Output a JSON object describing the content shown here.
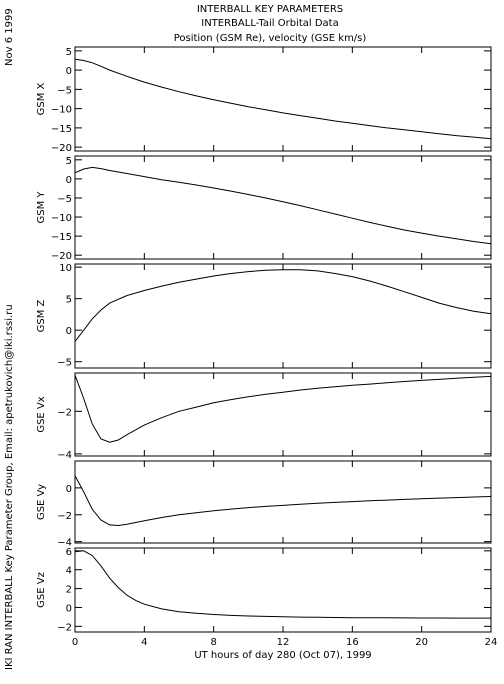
{
  "header": {
    "title": "INTERBALL KEY PARAMETERS",
    "subtitle": "INTERBALL-Tail Orbital Data",
    "subtitle2": "Position (GSM Re), velocity (GSE km/s)"
  },
  "side_date": "Nov  6 1999",
  "side_credit": "IKI RAN INTERBALL Key Parameter Group, Email: apetrukovich@iki.rssi.ru",
  "chart_data": {
    "type": "line",
    "xlabel": "UT hours of day 280 (Oct 07), 1999",
    "xlim": [
      0,
      24
    ],
    "xticks": [
      0,
      4,
      8,
      12,
      16,
      20,
      24
    ],
    "panels": [
      {
        "ylabel": "GSM X",
        "ylim": [
          -21,
          6
        ],
        "yticks": [
          5,
          0,
          -5,
          -10,
          -15,
          -20
        ],
        "x": [
          0,
          0.5,
          1,
          1.5,
          2,
          3,
          4,
          5,
          6,
          7,
          8,
          9,
          10,
          11,
          12,
          13,
          14,
          15,
          16,
          17,
          18,
          19,
          20,
          21,
          22,
          23,
          24
        ],
        "y": [
          2.8,
          2.5,
          1.9,
          1.0,
          0.0,
          -1.6,
          -3.1,
          -4.4,
          -5.6,
          -6.7,
          -7.7,
          -8.6,
          -9.5,
          -10.3,
          -11.1,
          -11.8,
          -12.5,
          -13.2,
          -13.8,
          -14.4,
          -15.0,
          -15.5,
          -16.0,
          -16.5,
          -17.0,
          -17.4,
          -17.8
        ]
      },
      {
        "ylabel": "GSM Y",
        "ylim": [
          -21,
          6
        ],
        "yticks": [
          5,
          0,
          -5,
          -10,
          -15,
          -20
        ],
        "x": [
          0,
          0.5,
          1,
          1.5,
          2,
          3,
          4,
          5,
          6,
          7,
          8,
          9,
          10,
          11,
          12,
          13,
          14,
          15,
          16,
          17,
          18,
          19,
          20,
          21,
          22,
          23,
          24
        ],
        "y": [
          1.6,
          2.6,
          3.0,
          2.7,
          2.2,
          1.4,
          0.6,
          -0.2,
          -0.9,
          -1.6,
          -2.4,
          -3.2,
          -4.1,
          -5.0,
          -6.0,
          -7.0,
          -8.1,
          -9.2,
          -10.3,
          -11.4,
          -12.4,
          -13.4,
          -14.2,
          -15.0,
          -15.7,
          -16.4,
          -17.0
        ]
      },
      {
        "ylabel": "GSM Z",
        "ylim": [
          -6,
          10.5
        ],
        "yticks": [
          10,
          5,
          0,
          -5
        ],
        "x": [
          0,
          0.5,
          1,
          1.5,
          2,
          3,
          4,
          5,
          6,
          7,
          8,
          9,
          10,
          11,
          12,
          13,
          14,
          15,
          16,
          17,
          18,
          19,
          20,
          21,
          22,
          23,
          24
        ],
        "y": [
          -1.8,
          0.0,
          1.8,
          3.2,
          4.3,
          5.5,
          6.3,
          7.0,
          7.6,
          8.1,
          8.6,
          9.0,
          9.3,
          9.5,
          9.6,
          9.6,
          9.4,
          9.0,
          8.5,
          7.8,
          7.0,
          6.1,
          5.2,
          4.3,
          3.6,
          3.0,
          2.6
        ]
      },
      {
        "ylabel": "GSE Vx",
        "ylim": [
          -4.1,
          -0.2
        ],
        "yticks": [
          -2,
          -4
        ],
        "x": [
          0,
          0.5,
          1,
          1.5,
          2,
          2.5,
          3,
          4,
          5,
          6,
          7,
          8,
          9,
          10,
          11,
          12,
          13,
          14,
          15,
          16,
          17,
          18,
          19,
          20,
          21,
          22,
          23,
          24
        ],
        "y": [
          -0.3,
          -1.4,
          -2.6,
          -3.3,
          -3.45,
          -3.35,
          -3.1,
          -2.65,
          -2.3,
          -2.0,
          -1.8,
          -1.6,
          -1.45,
          -1.32,
          -1.2,
          -1.1,
          -1.0,
          -0.92,
          -0.85,
          -0.78,
          -0.72,
          -0.66,
          -0.6,
          -0.55,
          -0.5,
          -0.45,
          -0.4,
          -0.36
        ]
      },
      {
        "ylabel": "GSE Vy",
        "ylim": [
          -4.1,
          2.0
        ],
        "yticks": [
          0,
          -2,
          -4
        ],
        "x": [
          0,
          0.5,
          1,
          1.5,
          2,
          2.5,
          3,
          4,
          5,
          6,
          7,
          8,
          9,
          10,
          11,
          12,
          13,
          14,
          15,
          16,
          17,
          18,
          19,
          20,
          21,
          22,
          23,
          24
        ],
        "y": [
          0.9,
          -0.3,
          -1.6,
          -2.4,
          -2.75,
          -2.8,
          -2.7,
          -2.45,
          -2.2,
          -2.0,
          -1.85,
          -1.7,
          -1.58,
          -1.47,
          -1.38,
          -1.3,
          -1.22,
          -1.15,
          -1.08,
          -1.02,
          -0.96,
          -0.91,
          -0.86,
          -0.81,
          -0.76,
          -0.72,
          -0.68,
          -0.64
        ]
      },
      {
        "ylabel": "GSE Vz",
        "ylim": [
          -2.6,
          6.3
        ],
        "yticks": [
          6,
          4,
          2,
          0,
          -2
        ],
        "x": [
          0,
          0.5,
          1,
          1.5,
          2,
          2.5,
          3,
          3.5,
          4,
          5,
          6,
          7,
          8,
          9,
          10,
          11,
          12,
          13,
          14,
          15,
          16,
          17,
          18,
          19,
          20,
          21,
          22,
          23,
          24
        ],
        "y": [
          5.9,
          6.0,
          5.5,
          4.4,
          3.1,
          2.1,
          1.3,
          0.75,
          0.35,
          -0.15,
          -0.45,
          -0.62,
          -0.75,
          -0.84,
          -0.9,
          -0.95,
          -0.99,
          -1.02,
          -1.04,
          -1.06,
          -1.08,
          -1.09,
          -1.1,
          -1.11,
          -1.12,
          -1.12,
          -1.13,
          -1.13,
          -1.13
        ]
      }
    ]
  }
}
